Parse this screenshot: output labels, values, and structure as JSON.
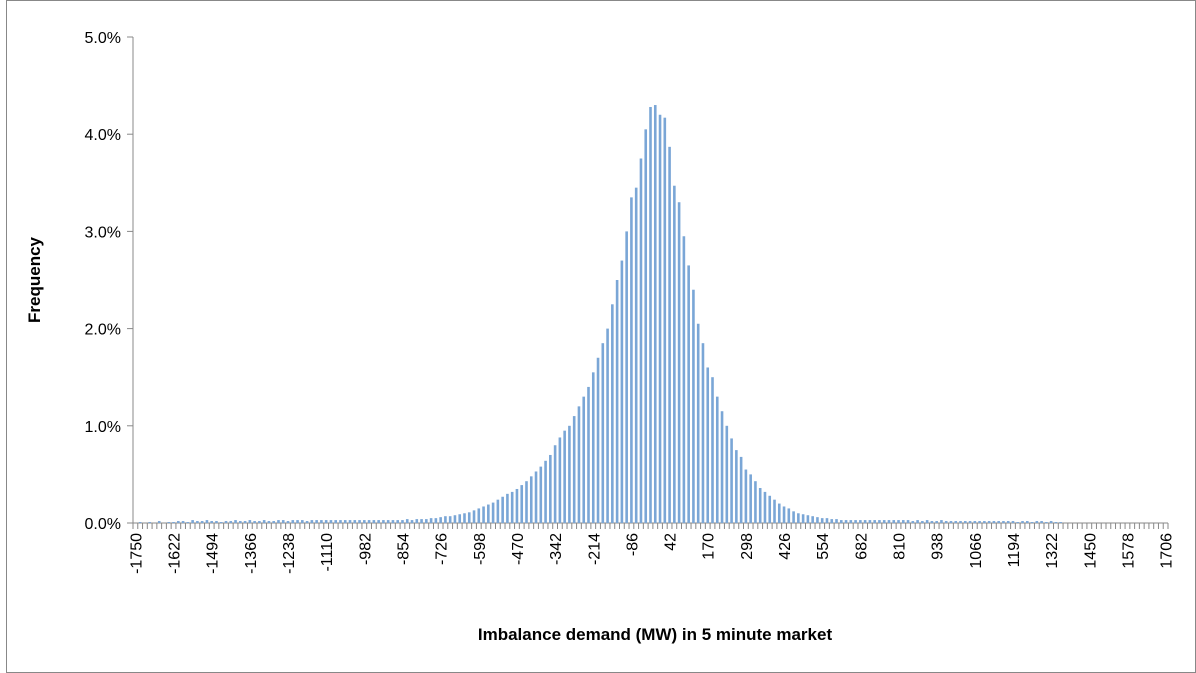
{
  "chart_data": {
    "type": "bar",
    "x_label": "Imbalance demand (MW) in 5 minute market",
    "y_label": "Frequency",
    "color": "#7aa6d6",
    "ylim": [
      0,
      5
    ],
    "yticks": [
      {
        "value": 0,
        "label": "0.0%"
      },
      {
        "value": 1,
        "label": "1.0%"
      },
      {
        "value": 2,
        "label": "2.0%"
      },
      {
        "value": 3,
        "label": "3.0%"
      },
      {
        "value": 4,
        "label": "4.0%"
      },
      {
        "value": 5,
        "label": "5.0%"
      }
    ],
    "categories": [
      "-1750",
      null,
      null,
      null,
      null,
      null,
      null,
      null,
      "-1622",
      null,
      null,
      null,
      null,
      null,
      null,
      null,
      "-1494",
      null,
      null,
      null,
      null,
      null,
      null,
      null,
      "-1366",
      null,
      null,
      null,
      null,
      null,
      null,
      null,
      "-1238",
      null,
      null,
      null,
      null,
      null,
      null,
      null,
      "-1110",
      null,
      null,
      null,
      null,
      null,
      null,
      null,
      "-982",
      null,
      null,
      null,
      null,
      null,
      null,
      null,
      "-854",
      null,
      null,
      null,
      null,
      null,
      null,
      null,
      "-726",
      null,
      null,
      null,
      null,
      null,
      null,
      null,
      "-598",
      null,
      null,
      null,
      null,
      null,
      null,
      null,
      "-470",
      null,
      null,
      null,
      null,
      null,
      null,
      null,
      "-342",
      null,
      null,
      null,
      null,
      null,
      null,
      null,
      "-214",
      null,
      null,
      null,
      null,
      null,
      null,
      null,
      "-86",
      null,
      null,
      null,
      null,
      null,
      null,
      null,
      "42",
      null,
      null,
      null,
      null,
      null,
      null,
      null,
      "170",
      null,
      null,
      null,
      null,
      null,
      null,
      null,
      "298",
      null,
      null,
      null,
      null,
      null,
      null,
      null,
      "426",
      null,
      null,
      null,
      null,
      null,
      null,
      null,
      "554",
      null,
      null,
      null,
      null,
      null,
      null,
      null,
      "682",
      null,
      null,
      null,
      null,
      null,
      null,
      null,
      "810",
      null,
      null,
      null,
      null,
      null,
      null,
      null,
      "938",
      null,
      null,
      null,
      null,
      null,
      null,
      null,
      "1066",
      null,
      null,
      null,
      null,
      null,
      null,
      null,
      "1194",
      null,
      null,
      null,
      null,
      null,
      null,
      null,
      "1322",
      null,
      null,
      null,
      null,
      null,
      null,
      null,
      "1450",
      null,
      null,
      null,
      null,
      null,
      null,
      null,
      "1578",
      null,
      null,
      null,
      null,
      null,
      null,
      null,
      "1706"
    ],
    "values": [
      0,
      0.01,
      0,
      0.01,
      0,
      0.02,
      0,
      0.01,
      0.01,
      0.02,
      0.02,
      0.01,
      0.03,
      0.02,
      0.02,
      0.03,
      0.02,
      0.02,
      0.01,
      0.02,
      0.02,
      0.03,
      0.02,
      0.02,
      0.03,
      0.02,
      0.02,
      0.03,
      0.02,
      0.02,
      0.03,
      0.03,
      0.02,
      0.03,
      0.03,
      0.03,
      0.02,
      0.03,
      0.03,
      0.03,
      0.03,
      0.03,
      0.03,
      0.03,
      0.03,
      0.03,
      0.03,
      0.03,
      0.03,
      0.03,
      0.03,
      0.03,
      0.03,
      0.03,
      0.03,
      0.03,
      0.03,
      0.04,
      0.03,
      0.04,
      0.04,
      0.04,
      0.05,
      0.05,
      0.06,
      0.07,
      0.07,
      0.08,
      0.09,
      0.1,
      0.11,
      0.13,
      0.15,
      0.17,
      0.19,
      0.21,
      0.24,
      0.27,
      0.3,
      0.32,
      0.35,
      0.39,
      0.43,
      0.48,
      0.53,
      0.58,
      0.64,
      0.7,
      0.8,
      0.88,
      0.95,
      1.0,
      1.1,
      1.2,
      1.3,
      1.4,
      1.55,
      1.7,
      1.85,
      2.0,
      2.25,
      2.5,
      2.7,
      3.0,
      3.35,
      3.45,
      3.75,
      4.05,
      4.28,
      4.3,
      4.2,
      4.17,
      3.87,
      3.47,
      3.3,
      2.95,
      2.65,
      2.4,
      2.05,
      1.85,
      1.6,
      1.5,
      1.3,
      1.15,
      1.0,
      0.87,
      0.75,
      0.68,
      0.55,
      0.5,
      0.43,
      0.36,
      0.32,
      0.28,
      0.24,
      0.2,
      0.17,
      0.15,
      0.12,
      0.1,
      0.09,
      0.08,
      0.07,
      0.06,
      0.05,
      0.05,
      0.04,
      0.04,
      0.03,
      0.03,
      0.03,
      0.03,
      0.03,
      0.03,
      0.03,
      0.03,
      0.03,
      0.03,
      0.03,
      0.03,
      0.03,
      0.03,
      0.03,
      0.02,
      0.03,
      0.02,
      0.03,
      0.02,
      0.02,
      0.03,
      0.02,
      0.02,
      0.02,
      0.02,
      0.02,
      0.02,
      0.02,
      0.02,
      0.02,
      0.02,
      0.02,
      0.02,
      0.02,
      0.02,
      0.02,
      0.01,
      0.02,
      0.02,
      0.01,
      0.02,
      0.02,
      0.01,
      0.02,
      0.01,
      0.01,
      0,
      0,
      0,
      0,
      0,
      0,
      0,
      0,
      0,
      0,
      0,
      0,
      0,
      0,
      0,
      0,
      0,
      0,
      0,
      0,
      0,
      0
    ]
  }
}
